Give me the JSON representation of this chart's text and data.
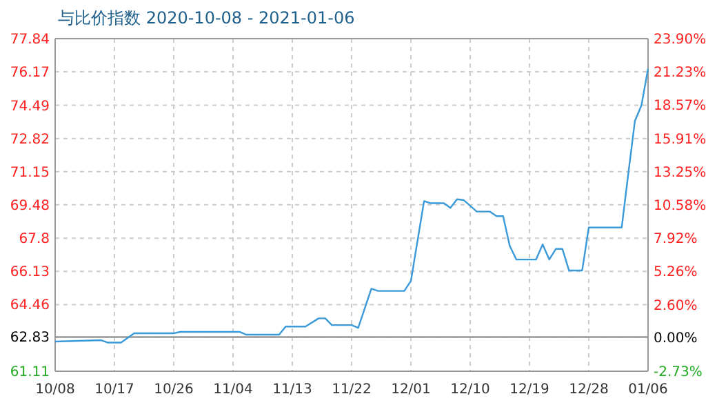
{
  "chart_data": {
    "type": "line",
    "title": "与比价指数 2020-10-08 - 2021-01-06",
    "x": [
      "2020-10-08",
      "2020-10-15",
      "2020-10-16",
      "2020-10-18",
      "2020-10-20",
      "2020-10-26",
      "2020-10-27",
      "2020-11-05",
      "2020-11-06",
      "2020-11-11",
      "2020-11-12",
      "2020-11-15",
      "2020-11-17",
      "2020-11-18",
      "2020-11-19",
      "2020-11-22",
      "2020-11-23",
      "2020-11-25",
      "2020-11-26",
      "2020-11-30",
      "2020-12-01",
      "2020-12-03",
      "2020-12-04",
      "2020-12-06",
      "2020-12-07",
      "2020-12-08",
      "2020-12-09",
      "2020-12-11",
      "2020-12-13",
      "2020-12-14",
      "2020-12-15",
      "2020-12-16",
      "2020-12-17",
      "2020-12-20",
      "2020-12-21",
      "2020-12-22",
      "2020-12-23",
      "2020-12-24",
      "2020-12-25",
      "2020-12-27",
      "2020-12-28",
      "2021-01-02",
      "2021-01-03",
      "2021-01-04",
      "2021-01-05",
      "2021-01-06"
    ],
    "series": [
      {
        "color": "#3a9ad9",
        "values": [
          62.6,
          62.67,
          62.55,
          62.55,
          63.02,
          63.02,
          63.09,
          63.09,
          62.95,
          62.95,
          63.36,
          63.36,
          63.77,
          63.77,
          63.43,
          63.43,
          63.29,
          65.26,
          65.15,
          65.15,
          65.65,
          69.67,
          69.56,
          69.56,
          69.33,
          69.76,
          69.72,
          69.14,
          69.14,
          68.91,
          68.91,
          67.42,
          66.73,
          66.73,
          67.49,
          66.73,
          67.26,
          67.26,
          66.18,
          66.18,
          68.34,
          68.34,
          71.05,
          73.69,
          74.49,
          76.33
        ]
      }
    ],
    "xlim": [
      "2020-10-08",
      "2021-01-06"
    ],
    "xticks": [
      {
        "value": "2020-10-08",
        "label": "10/08"
      },
      {
        "value": "2020-10-17",
        "label": "10/17"
      },
      {
        "value": "2020-10-26",
        "label": "10/26"
      },
      {
        "value": "2020-11-04",
        "label": "11/04"
      },
      {
        "value": "2020-11-13",
        "label": "11/13"
      },
      {
        "value": "2020-11-22",
        "label": "11/22"
      },
      {
        "value": "2020-12-01",
        "label": "12/01"
      },
      {
        "value": "2020-12-10",
        "label": "12/10"
      },
      {
        "value": "2020-12-19",
        "label": "12/19"
      },
      {
        "value": "2020-12-28",
        "label": "12/28"
      },
      {
        "value": "2021-01-06",
        "label": "01/06"
      }
    ],
    "ylim": [
      61.11,
      77.84
    ],
    "yticks": [
      61.11,
      62.83,
      64.46,
      66.13,
      {
        "value": 67.8,
        "label": "67.8"
      },
      69.48,
      71.15,
      72.82,
      74.49,
      76.17,
      77.84
    ],
    "y2lim": [
      -2.73,
      23.9
    ],
    "y2ticks": [
      {
        "value": -2.73,
        "label": "-2.73%"
      },
      {
        "value": 0,
        "label": "0.00%"
      },
      {
        "value": 2.6,
        "label": "2.60%"
      },
      {
        "value": 5.26,
        "label": "5.26%"
      },
      {
        "value": 7.92,
        "label": "7.92%"
      },
      {
        "value": 10.58,
        "label": "10.58%"
      },
      {
        "value": 13.25,
        "label": "13.25%"
      },
      {
        "value": 15.91,
        "label": "15.91%"
      },
      {
        "value": 18.57,
        "label": "18.57%"
      },
      {
        "value": 21.23,
        "label": "21.23%"
      },
      {
        "value": 23.9,
        "label": "23.90%"
      }
    ],
    "ref_lines": [
      {
        "axis": "y",
        "value": 62.83,
        "color": "#999999"
      }
    ],
    "grid": true
  }
}
